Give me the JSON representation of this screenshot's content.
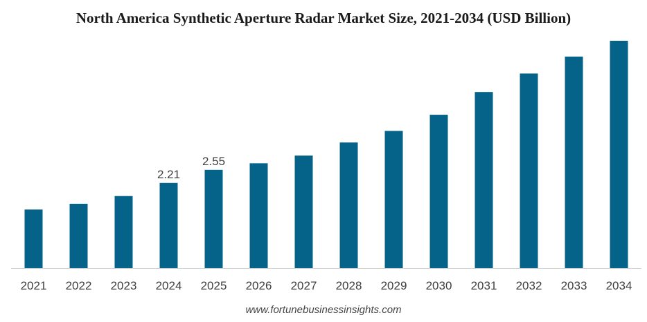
{
  "chart_data": {
    "type": "bar",
    "title": "North America Synthetic Aperture Radar Market Size, 2021-2034 (USD Billion)",
    "categories": [
      "2021",
      "2022",
      "2023",
      "2024",
      "2025",
      "2026",
      "2027",
      "2028",
      "2029",
      "2030",
      "2031",
      "2032",
      "2033",
      "2034"
    ],
    "values": [
      1.52,
      1.67,
      1.87,
      2.21,
      2.55,
      2.72,
      2.92,
      3.26,
      3.56,
      3.98,
      4.57,
      5.05,
      5.49,
      5.9
    ],
    "data_labels": [
      null,
      null,
      null,
      "2.21",
      "2.55",
      null,
      null,
      null,
      null,
      null,
      null,
      null,
      null,
      null
    ],
    "ylim": [
      0,
      5.9
    ],
    "color": "#05638a",
    "grid": false,
    "legend": "none"
  },
  "footer": "www.fortunebusinessinsights.com"
}
